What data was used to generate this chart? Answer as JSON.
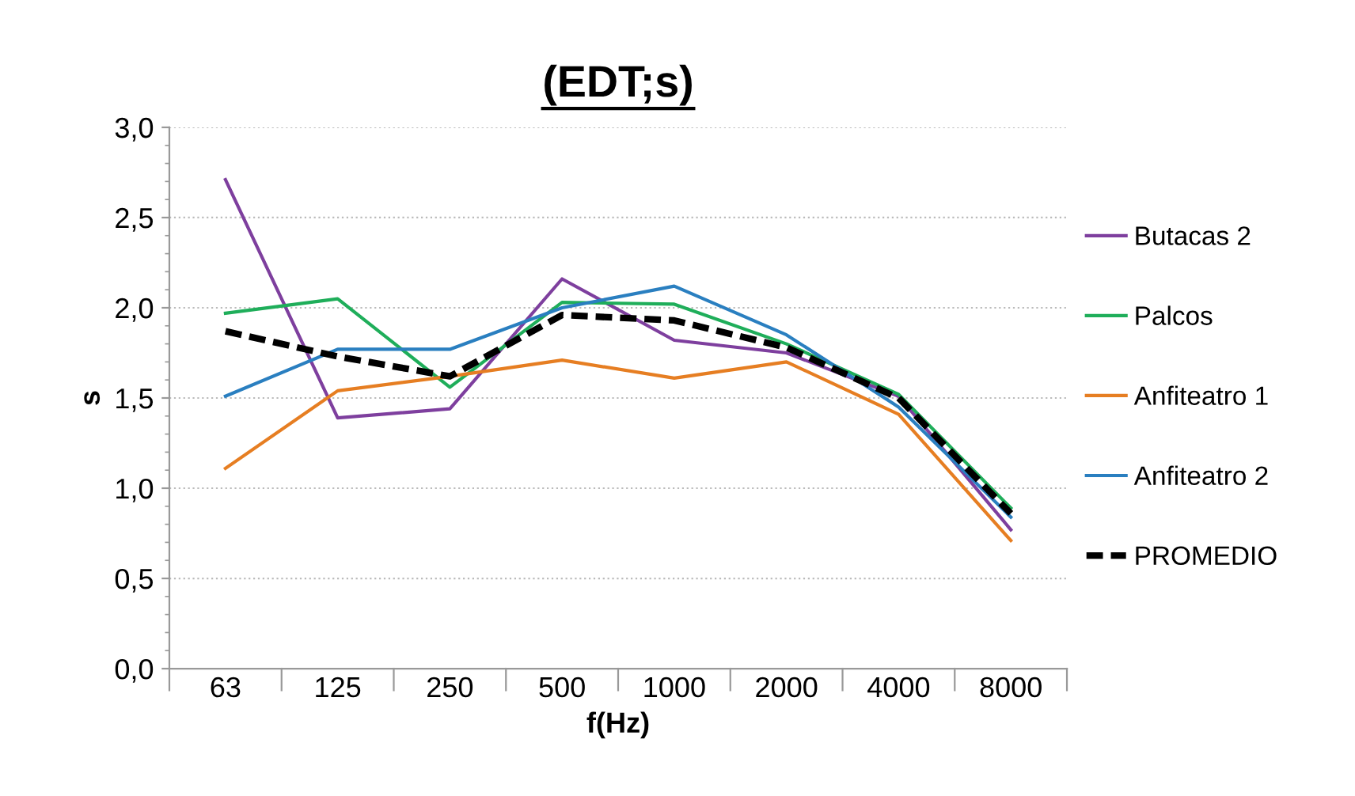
{
  "chart_data": {
    "type": "line",
    "title": "(EDT;s)",
    "xlabel": "f(Hz)",
    "ylabel": "s",
    "categories": [
      "63",
      "125",
      "250",
      "500",
      "1000",
      "2000",
      "4000",
      "8000"
    ],
    "series": [
      {
        "name": "Butacas 2",
        "color": "#7e3f9e",
        "values": [
          2.71,
          1.39,
          1.44,
          2.16,
          1.82,
          1.75,
          1.51,
          0.77
        ]
      },
      {
        "name": "Palcos",
        "color": "#1fae5a",
        "values": [
          1.97,
          2.05,
          1.56,
          2.03,
          2.02,
          1.8,
          1.52,
          0.89
        ]
      },
      {
        "name": "Anfiteatro 1",
        "color": "#e67e22",
        "values": [
          1.11,
          1.54,
          1.62,
          1.71,
          1.61,
          1.7,
          1.41,
          0.71
        ]
      },
      {
        "name": "Anfiteatro 2",
        "color": "#2a7fc0",
        "values": [
          1.51,
          1.77,
          1.77,
          2.0,
          2.12,
          1.85,
          1.45,
          0.84
        ]
      },
      {
        "name": "PROMEDIO",
        "color": "#000000",
        "line_style": "dashed",
        "values": [
          1.87,
          1.73,
          1.62,
          1.96,
          1.93,
          1.78,
          1.5,
          0.86
        ]
      }
    ],
    "ylim": [
      0,
      3
    ],
    "yticks": [
      {
        "value": 0,
        "label": "0,0"
      },
      {
        "value": 0.5,
        "label": "0,5"
      },
      {
        "value": 1,
        "label": "1,0"
      },
      {
        "value": 1.5,
        "label": "1,5"
      },
      {
        "value": 2,
        "label": "2,0"
      },
      {
        "value": 2.5,
        "label": "2,5"
      },
      {
        "value": 3,
        "label": "3,0"
      }
    ],
    "grid": "y",
    "legend": "right",
    "line_style": "solid",
    "marker": "none"
  }
}
